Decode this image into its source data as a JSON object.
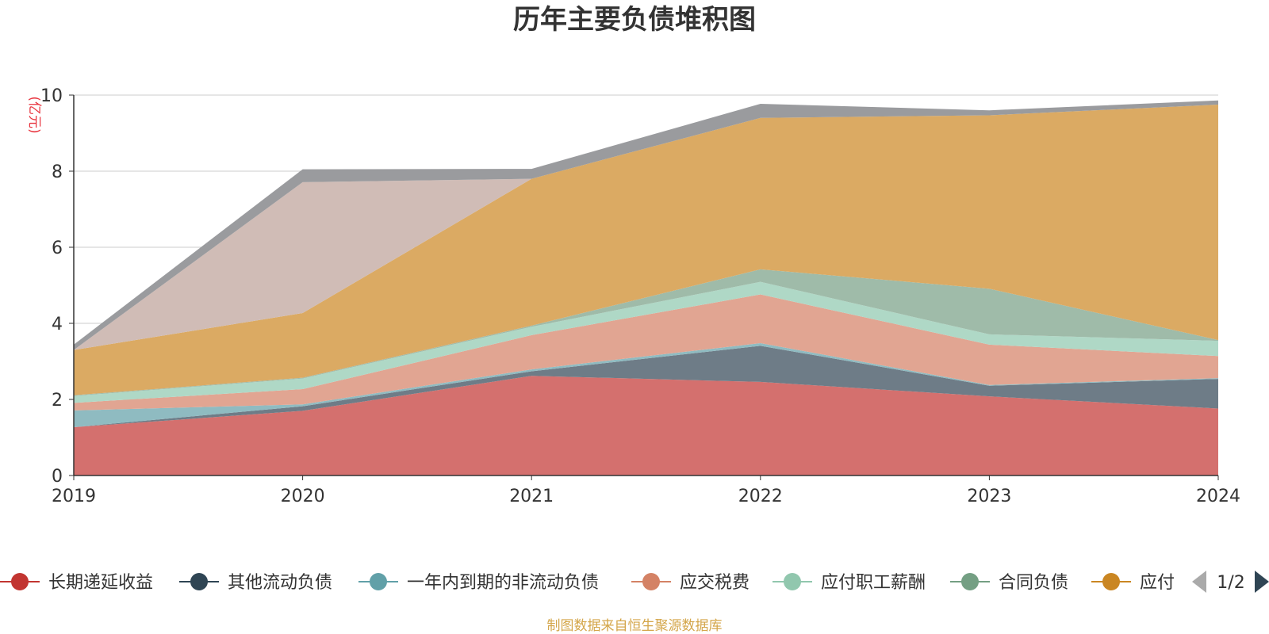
{
  "source_note": "制图数据来自恒生聚源数据库",
  "legend_page": "1/2",
  "colors": {
    "unit_text": "#e8343e",
    "source_text": "#d4a64a",
    "grid": "#cccccc",
    "axis": "#333333"
  },
  "chart_data": {
    "type": "area",
    "stacked": true,
    "title": "历年主要负债堆积图",
    "ylabel": "(亿元)",
    "xlabel": "",
    "x": [
      "2019",
      "2020",
      "2021",
      "2022",
      "2023",
      "2024"
    ],
    "ylim": [
      0,
      10
    ],
    "yticks": [
      0,
      2,
      4,
      6,
      8,
      10
    ],
    "grid": true,
    "legend_position": "bottom",
    "series": [
      {
        "name": "长期递延收益",
        "color": "#c23531",
        "fill": "#d4706e",
        "values": [
          1.27,
          1.7,
          2.62,
          2.46,
          2.08,
          1.76
        ],
        "legend": true
      },
      {
        "name": "其他流动负债",
        "color": "#2f4554",
        "fill": "#6e7c87",
        "values": [
          0.0,
          0.12,
          0.12,
          0.95,
          0.28,
          0.78
        ],
        "legend": true
      },
      {
        "name": "一年内到期的非流动负债",
        "color": "#61a0a8",
        "fill": "#8fbbc1",
        "values": [
          0.44,
          0.05,
          0.05,
          0.07,
          0.02,
          0.02
        ],
        "legend": true
      },
      {
        "name": "应交税费",
        "color": "#d48265",
        "fill": "#e1a592",
        "values": [
          0.2,
          0.4,
          0.9,
          1.28,
          1.06,
          0.58
        ],
        "legend": true
      },
      {
        "name": "应付职工薪酬",
        "color": "#91c7ae",
        "fill": "#afd8c6",
        "values": [
          0.18,
          0.28,
          0.22,
          0.33,
          0.27,
          0.4
        ],
        "legend": true
      },
      {
        "name": "合同负债",
        "color": "#749f83",
        "fill": "#9fbba9",
        "values": [
          0.02,
          0.02,
          0.03,
          0.33,
          1.2,
          0.02
        ],
        "legend": true
      },
      {
        "name": "应付",
        "color": "#ca8622",
        "fill": "#dbaa63",
        "values": [
          1.19,
          1.7,
          3.86,
          3.98,
          4.56,
          6.19
        ],
        "legend": true
      },
      {
        "name": "",
        "color": "#bda29a",
        "fill": "#d0bcb6",
        "values": [
          0.0,
          3.44,
          0.0,
          0.0,
          0.0,
          0.0
        ],
        "legend": false
      },
      {
        "name": "",
        "color": "#6e7074",
        "fill": "#9a9b9e",
        "values": [
          0.14,
          0.34,
          0.26,
          0.37,
          0.13,
          0.11
        ],
        "legend": false
      }
    ]
  }
}
